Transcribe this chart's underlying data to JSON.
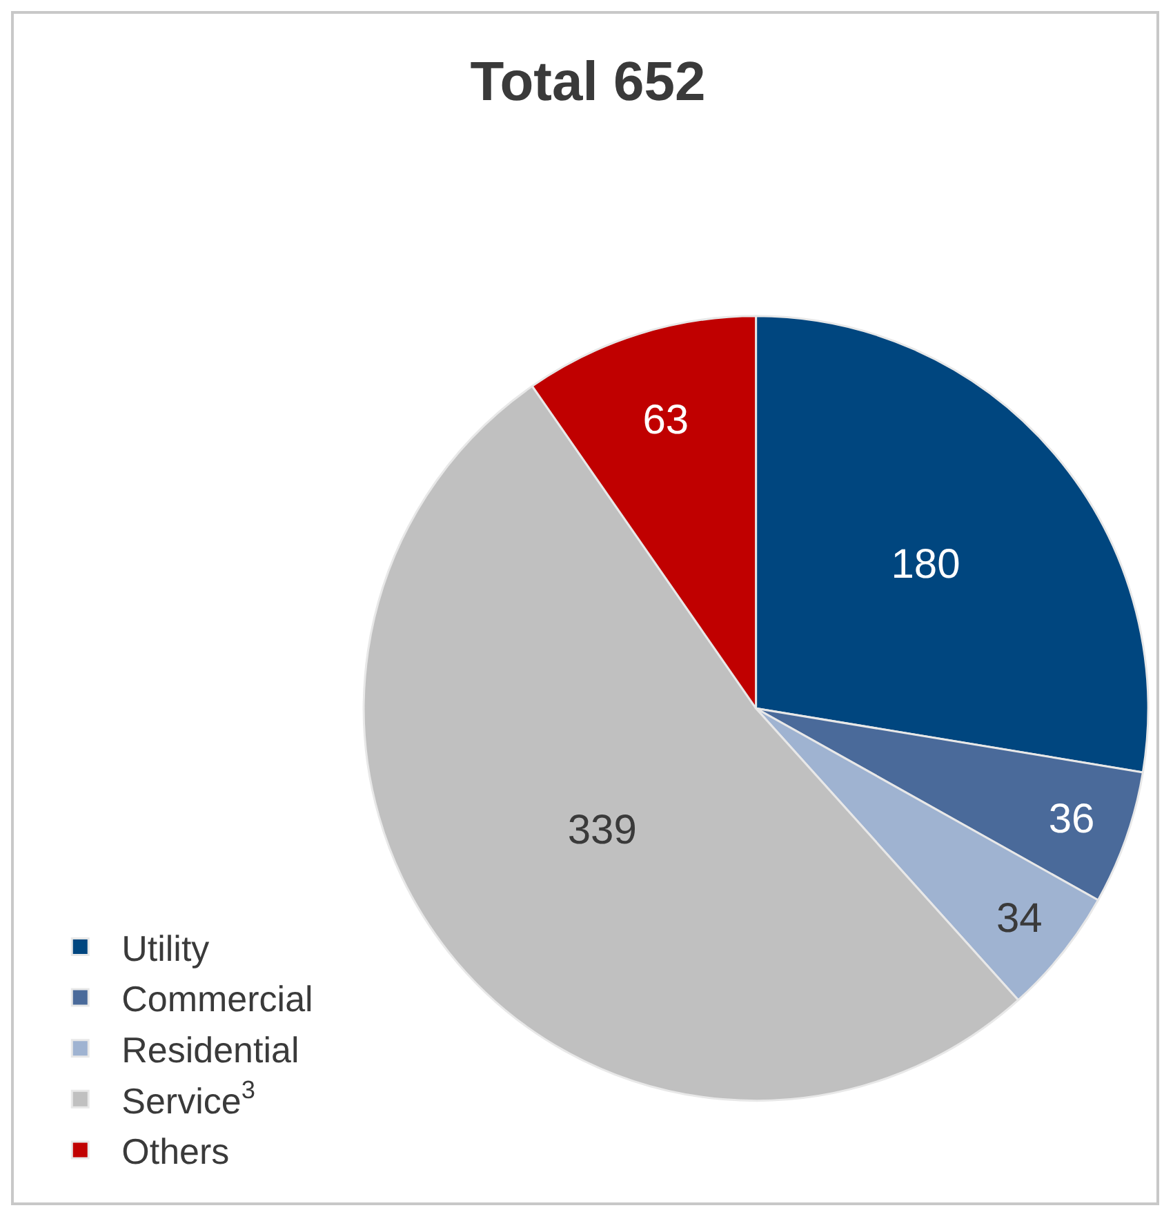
{
  "chart_data": {
    "type": "pie",
    "title": "Total 652",
    "categories": [
      "Utility",
      "Commercial",
      "Residential",
      "Service$^{3}$",
      "Others"
    ],
    "values": [
      180,
      36,
      34,
      339,
      63
    ],
    "colors": [
      "#00467f",
      "#4a6a9a",
      "#9fb3d1",
      "#c0c0c0",
      "#c00000"
    ],
    "data_labels": true,
    "legend": "bottom left"
  }
}
